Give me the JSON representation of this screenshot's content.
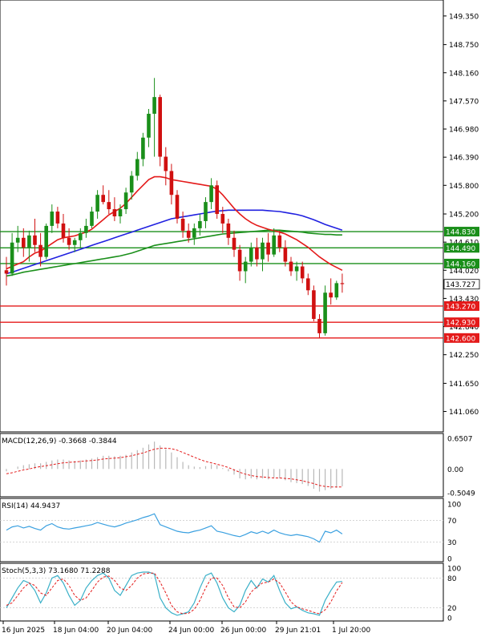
{
  "main_panel": {
    "price_axis_ticks": [
      "149.350",
      "148.750",
      "148.160",
      "147.570",
      "146.980",
      "146.390",
      "145.800",
      "145.200",
      "144.610",
      "144.020",
      "143.430",
      "142.840",
      "142.250",
      "141.650",
      "141.060"
    ],
    "horizontal_levels": [
      {
        "value": 144.83,
        "label": "144.830",
        "color": "#1a8f1a"
      },
      {
        "value": 144.49,
        "label": "144.490",
        "color": "#1a8f1a"
      },
      {
        "value": 144.16,
        "label": "144.160",
        "color": "#1a8f1a"
      },
      {
        "value": 143.27,
        "label": "143.270",
        "color": "#e41a1a"
      },
      {
        "value": 142.93,
        "label": "142.930",
        "color": "#e41a1a"
      },
      {
        "value": 142.6,
        "label": "142.600",
        "color": "#e41a1a"
      }
    ],
    "current_price": {
      "value": 143.727,
      "label": "143.727"
    }
  },
  "macd_panel": {
    "title": "MACD(12,26,9) -0.3668 -0.3844",
    "axis_ticks": [
      "0.6507",
      "0.00",
      "-0.5049"
    ]
  },
  "rsi_panel": {
    "title": "RSI(14) 44.9437",
    "axis_ticks": [
      "100",
      "70",
      "30",
      "0"
    ]
  },
  "stoch_panel": {
    "title": "Stoch(5,3,3) 73.1680 71.2288",
    "axis_ticks": [
      "100",
      "80",
      "20",
      "0"
    ]
  },
  "time_axis": [
    "16 Jun 2025",
    "18 Jun 04:00",
    "20 Jun 04:00",
    "24 Jun 00:00",
    "26 Jun 00:00",
    "29 Jun 21:01",
    "1 Jul 20:00"
  ],
  "colors": {
    "up_candle": "#1a8f1a",
    "down_candle": "#d01010",
    "ma_fast": "#e41a1a",
    "ma_mid": "#1a8f1a",
    "ma_slow": "#2020e0",
    "rsi_line": "#3aa0e0",
    "stoch_main": "#3ab0c8",
    "stoch_signal": "#e41a1a",
    "level_label_text": "#ffffff",
    "current_price_bg": "#ffffff"
  },
  "chart_data": {
    "type": "candlestick",
    "instrument_timeframe": "H4",
    "y_range": [
      140.75,
      149.55
    ],
    "candles": [
      {
        "o": 144.02,
        "h": 144.3,
        "l": 143.7,
        "c": 143.95
      },
      {
        "o": 143.95,
        "h": 144.8,
        "l": 143.9,
        "c": 144.6
      },
      {
        "o": 144.6,
        "h": 144.95,
        "l": 144.4,
        "c": 144.7
      },
      {
        "o": 144.7,
        "h": 144.9,
        "l": 144.3,
        "c": 144.5
      },
      {
        "o": 144.5,
        "h": 144.85,
        "l": 144.2,
        "c": 144.75
      },
      {
        "o": 144.75,
        "h": 145.1,
        "l": 144.4,
        "c": 144.55
      },
      {
        "o": 144.55,
        "h": 144.8,
        "l": 144.1,
        "c": 144.3
      },
      {
        "o": 144.3,
        "h": 145.0,
        "l": 144.25,
        "c": 144.95
      },
      {
        "o": 144.95,
        "h": 145.4,
        "l": 144.8,
        "c": 145.25
      },
      {
        "o": 145.25,
        "h": 145.35,
        "l": 144.9,
        "c": 145.0
      },
      {
        "o": 145.0,
        "h": 145.2,
        "l": 144.6,
        "c": 144.7
      },
      {
        "o": 144.7,
        "h": 144.9,
        "l": 144.45,
        "c": 144.55
      },
      {
        "o": 144.55,
        "h": 144.7,
        "l": 144.4,
        "c": 144.65
      },
      {
        "o": 144.65,
        "h": 144.9,
        "l": 144.5,
        "c": 144.8
      },
      {
        "o": 144.8,
        "h": 145.1,
        "l": 144.7,
        "c": 144.95
      },
      {
        "o": 144.95,
        "h": 145.35,
        "l": 144.9,
        "c": 145.25
      },
      {
        "o": 145.25,
        "h": 145.7,
        "l": 145.1,
        "c": 145.6
      },
      {
        "o": 145.6,
        "h": 145.8,
        "l": 145.4,
        "c": 145.45
      },
      {
        "o": 145.45,
        "h": 145.7,
        "l": 145.2,
        "c": 145.3
      },
      {
        "o": 145.3,
        "h": 145.55,
        "l": 145.05,
        "c": 145.15
      },
      {
        "o": 145.15,
        "h": 145.4,
        "l": 145.0,
        "c": 145.3
      },
      {
        "o": 145.3,
        "h": 145.75,
        "l": 145.2,
        "c": 145.65
      },
      {
        "o": 145.65,
        "h": 146.1,
        "l": 145.5,
        "c": 146.0
      },
      {
        "o": 146.0,
        "h": 146.5,
        "l": 145.9,
        "c": 146.35
      },
      {
        "o": 146.35,
        "h": 146.9,
        "l": 146.2,
        "c": 146.8
      },
      {
        "o": 146.8,
        "h": 147.4,
        "l": 146.6,
        "c": 147.3
      },
      {
        "o": 147.3,
        "h": 148.05,
        "l": 146.4,
        "c": 147.65
      },
      {
        "o": 147.65,
        "h": 147.7,
        "l": 146.2,
        "c": 146.4
      },
      {
        "o": 146.4,
        "h": 146.6,
        "l": 145.8,
        "c": 146.1
      },
      {
        "o": 146.1,
        "h": 146.25,
        "l": 145.4,
        "c": 145.6
      },
      {
        "o": 145.6,
        "h": 145.7,
        "l": 145.0,
        "c": 145.1
      },
      {
        "o": 145.1,
        "h": 145.25,
        "l": 144.7,
        "c": 144.85
      },
      {
        "o": 144.85,
        "h": 145.0,
        "l": 144.6,
        "c": 144.7
      },
      {
        "o": 144.7,
        "h": 145.0,
        "l": 144.55,
        "c": 144.9
      },
      {
        "o": 144.9,
        "h": 145.2,
        "l": 144.75,
        "c": 145.05
      },
      {
        "o": 145.05,
        "h": 145.55,
        "l": 144.9,
        "c": 145.45
      },
      {
        "o": 145.45,
        "h": 145.95,
        "l": 145.3,
        "c": 145.8
      },
      {
        "o": 145.8,
        "h": 145.9,
        "l": 145.1,
        "c": 145.2
      },
      {
        "o": 145.2,
        "h": 145.35,
        "l": 144.8,
        "c": 145.0
      },
      {
        "o": 145.0,
        "h": 145.1,
        "l": 144.55,
        "c": 144.7
      },
      {
        "o": 144.7,
        "h": 144.85,
        "l": 144.3,
        "c": 144.45
      },
      {
        "o": 144.45,
        "h": 144.55,
        "l": 143.8,
        "c": 144.0
      },
      {
        "o": 144.0,
        "h": 144.3,
        "l": 143.75,
        "c": 144.2
      },
      {
        "o": 144.2,
        "h": 144.6,
        "l": 144.1,
        "c": 144.5
      },
      {
        "o": 144.5,
        "h": 144.7,
        "l": 144.1,
        "c": 144.25
      },
      {
        "o": 144.25,
        "h": 144.7,
        "l": 144.0,
        "c": 144.6
      },
      {
        "o": 144.6,
        "h": 144.8,
        "l": 144.2,
        "c": 144.35
      },
      {
        "o": 144.35,
        "h": 144.9,
        "l": 144.3,
        "c": 144.75
      },
      {
        "o": 144.75,
        "h": 144.85,
        "l": 144.4,
        "c": 144.5
      },
      {
        "o": 144.5,
        "h": 144.65,
        "l": 144.1,
        "c": 144.2
      },
      {
        "o": 144.2,
        "h": 144.3,
        "l": 143.9,
        "c": 144.0
      },
      {
        "o": 144.0,
        "h": 144.2,
        "l": 143.8,
        "c": 144.1
      },
      {
        "o": 144.1,
        "h": 144.2,
        "l": 143.75,
        "c": 143.85
      },
      {
        "o": 143.85,
        "h": 143.95,
        "l": 143.5,
        "c": 143.6
      },
      {
        "o": 143.6,
        "h": 143.7,
        "l": 142.95,
        "c": 143.0
      },
      {
        "o": 143.0,
        "h": 143.1,
        "l": 142.6,
        "c": 142.7
      },
      {
        "o": 142.7,
        "h": 143.7,
        "l": 142.65,
        "c": 143.55
      },
      {
        "o": 143.55,
        "h": 143.85,
        "l": 143.3,
        "c": 143.45
      },
      {
        "o": 143.45,
        "h": 143.8,
        "l": 143.4,
        "c": 143.75
      },
      {
        "o": 143.75,
        "h": 143.95,
        "l": 143.55,
        "c": 143.73
      }
    ],
    "ma_fast": [
      144.05,
      144.1,
      144.15,
      144.2,
      144.3,
      144.38,
      144.42,
      144.5,
      144.58,
      144.66,
      144.7,
      144.72,
      144.74,
      144.78,
      144.82,
      144.88,
      144.98,
      145.08,
      145.18,
      145.25,
      145.32,
      145.42,
      145.55,
      145.68,
      145.8,
      145.92,
      145.98,
      145.98,
      145.96,
      145.92,
      145.9,
      145.88,
      145.86,
      145.84,
      145.82,
      145.8,
      145.78,
      145.72,
      145.6,
      145.46,
      145.32,
      145.2,
      145.1,
      145.02,
      144.96,
      144.92,
      144.88,
      144.85,
      144.82,
      144.78,
      144.72,
      144.66,
      144.58,
      144.5,
      144.4,
      144.3,
      144.22,
      144.14,
      144.08,
      144.02
    ],
    "ma_mid": [
      143.9,
      143.92,
      143.95,
      143.98,
      144.0,
      144.02,
      144.04,
      144.06,
      144.08,
      144.1,
      144.12,
      144.14,
      144.16,
      144.18,
      144.2,
      144.22,
      144.24,
      144.26,
      144.28,
      144.3,
      144.32,
      144.35,
      144.38,
      144.42,
      144.46,
      144.5,
      144.54,
      144.56,
      144.58,
      144.6,
      144.62,
      144.64,
      144.66,
      144.68,
      144.7,
      144.72,
      144.74,
      144.76,
      144.78,
      144.79,
      144.8,
      144.81,
      144.82,
      144.83,
      144.84,
      144.85,
      144.86,
      144.86,
      144.86,
      144.85,
      144.84,
      144.83,
      144.82,
      144.8,
      144.79,
      144.78,
      144.77,
      144.77,
      144.76,
      144.76
    ],
    "ma_slow": [
      143.95,
      143.98,
      144.02,
      144.06,
      144.1,
      144.14,
      144.18,
      144.22,
      144.26,
      144.3,
      144.34,
      144.38,
      144.42,
      144.46,
      144.5,
      144.54,
      144.58,
      144.62,
      144.66,
      144.7,
      144.74,
      144.78,
      144.82,
      144.86,
      144.9,
      144.94,
      144.98,
      145.02,
      145.06,
      145.1,
      145.12,
      145.14,
      145.16,
      145.18,
      145.2,
      145.22,
      145.24,
      145.26,
      145.27,
      145.28,
      145.28,
      145.28,
      145.28,
      145.28,
      145.28,
      145.28,
      145.27,
      145.26,
      145.25,
      145.23,
      145.21,
      145.19,
      145.16,
      145.12,
      145.08,
      145.03,
      144.98,
      144.94,
      144.9,
      144.86
    ],
    "macd": {
      "y_range": [
        -0.5049,
        0.6507
      ],
      "histogram": [
        -0.05,
        0.0,
        0.05,
        0.08,
        0.1,
        0.12,
        0.12,
        0.15,
        0.18,
        0.2,
        0.2,
        0.18,
        0.17,
        0.18,
        0.2,
        0.22,
        0.25,
        0.28,
        0.28,
        0.27,
        0.28,
        0.3,
        0.35,
        0.4,
        0.45,
        0.52,
        0.58,
        0.5,
        0.42,
        0.35,
        0.25,
        0.15,
        0.08,
        0.05,
        0.04,
        0.06,
        0.1,
        0.08,
        0.02,
        -0.05,
        -0.12,
        -0.2,
        -0.22,
        -0.2,
        -0.22,
        -0.2,
        -0.22,
        -0.18,
        -0.2,
        -0.24,
        -0.28,
        -0.3,
        -0.32,
        -0.36,
        -0.42,
        -0.48,
        -0.45,
        -0.42,
        -0.4,
        -0.37
      ],
      "signal": [
        -0.1,
        -0.08,
        -0.05,
        -0.02,
        0.0,
        0.03,
        0.05,
        0.07,
        0.09,
        0.11,
        0.13,
        0.14,
        0.15,
        0.16,
        0.17,
        0.18,
        0.19,
        0.21,
        0.22,
        0.23,
        0.24,
        0.26,
        0.28,
        0.31,
        0.34,
        0.38,
        0.42,
        0.44,
        0.44,
        0.43,
        0.4,
        0.35,
        0.3,
        0.25,
        0.2,
        0.16,
        0.13,
        0.1,
        0.07,
        0.03,
        -0.02,
        -0.07,
        -0.11,
        -0.14,
        -0.16,
        -0.17,
        -0.18,
        -0.19,
        -0.19,
        -0.2,
        -0.21,
        -0.23,
        -0.25,
        -0.28,
        -0.31,
        -0.35,
        -0.37,
        -0.38,
        -0.38,
        -0.38
      ]
    },
    "rsi": [
      52,
      58,
      60,
      56,
      59,
      55,
      52,
      60,
      64,
      58,
      55,
      54,
      56,
      58,
      60,
      62,
      66,
      63,
      60,
      58,
      61,
      65,
      68,
      71,
      75,
      78,
      82,
      62,
      58,
      54,
      50,
      48,
      47,
      50,
      52,
      56,
      60,
      50,
      48,
      45,
      42,
      40,
      44,
      49,
      46,
      50,
      46,
      52,
      47,
      44,
      42,
      44,
      42,
      40,
      36,
      30,
      50,
      47,
      52,
      45
    ],
    "stoch_main": [
      20,
      40,
      60,
      75,
      70,
      55,
      30,
      50,
      80,
      85,
      70,
      45,
      25,
      35,
      60,
      75,
      85,
      90,
      80,
      55,
      45,
      65,
      85,
      90,
      92,
      92,
      88,
      40,
      20,
      10,
      5,
      8,
      12,
      30,
      60,
      85,
      90,
      70,
      40,
      20,
      12,
      25,
      55,
      75,
      60,
      78,
      72,
      85,
      55,
      30,
      18,
      22,
      15,
      10,
      8,
      5,
      35,
      55,
      72,
      73
    ],
    "stoch_signal": [
      25,
      30,
      45,
      60,
      70,
      65,
      50,
      45,
      60,
      75,
      78,
      65,
      45,
      35,
      40,
      55,
      72,
      82,
      84,
      75,
      60,
      55,
      65,
      80,
      88,
      90,
      90,
      72,
      50,
      25,
      12,
      8,
      9,
      17,
      35,
      60,
      80,
      80,
      65,
      40,
      22,
      20,
      32,
      52,
      62,
      70,
      72,
      78,
      70,
      52,
      32,
      22,
      18,
      15,
      11,
      8,
      16,
      32,
      54,
      71
    ]
  }
}
